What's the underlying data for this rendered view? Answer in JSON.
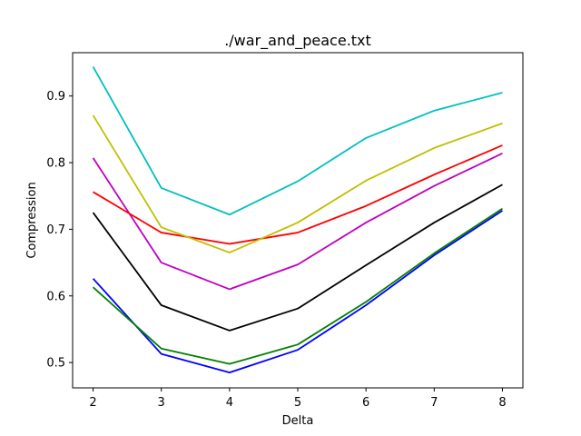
{
  "chart_data": {
    "type": "line",
    "title": "./war_and_peace.txt",
    "xlabel": "Delta",
    "ylabel": "Compression",
    "x": [
      2,
      3,
      4,
      5,
      6,
      7,
      8
    ],
    "xlim": [
      1.7,
      8.3
    ],
    "ylim": [
      0.462,
      0.965
    ],
    "xticks": [
      2,
      3,
      4,
      5,
      6,
      7,
      8
    ],
    "yticks": [
      0.5,
      0.6,
      0.7,
      0.8,
      0.9
    ],
    "ytick_labels": [
      "0.5",
      "0.6",
      "0.7",
      "0.8",
      "0.9"
    ],
    "grid": false,
    "series": [
      {
        "color": "#0000ff",
        "values": [
          0.626,
          0.513,
          0.485,
          0.519,
          0.586,
          0.661,
          0.728
        ]
      },
      {
        "color": "#008000",
        "values": [
          0.613,
          0.521,
          0.498,
          0.527,
          0.591,
          0.664,
          0.731
        ]
      },
      {
        "color": "#000000",
        "values": [
          0.725,
          0.586,
          0.548,
          0.581,
          0.646,
          0.71,
          0.767
        ]
      },
      {
        "color": "#bf00bf",
        "values": [
          0.807,
          0.65,
          0.61,
          0.647,
          0.71,
          0.765,
          0.814
        ]
      },
      {
        "color": "#ff0000",
        "values": [
          0.756,
          0.695,
          0.678,
          0.695,
          0.735,
          0.782,
          0.826
        ]
      },
      {
        "color": "#bfbf00",
        "values": [
          0.871,
          0.703,
          0.665,
          0.71,
          0.773,
          0.822,
          0.859
        ]
      },
      {
        "color": "#00bfbf",
        "values": [
          0.944,
          0.762,
          0.722,
          0.772,
          0.837,
          0.878,
          0.905
        ]
      }
    ]
  }
}
